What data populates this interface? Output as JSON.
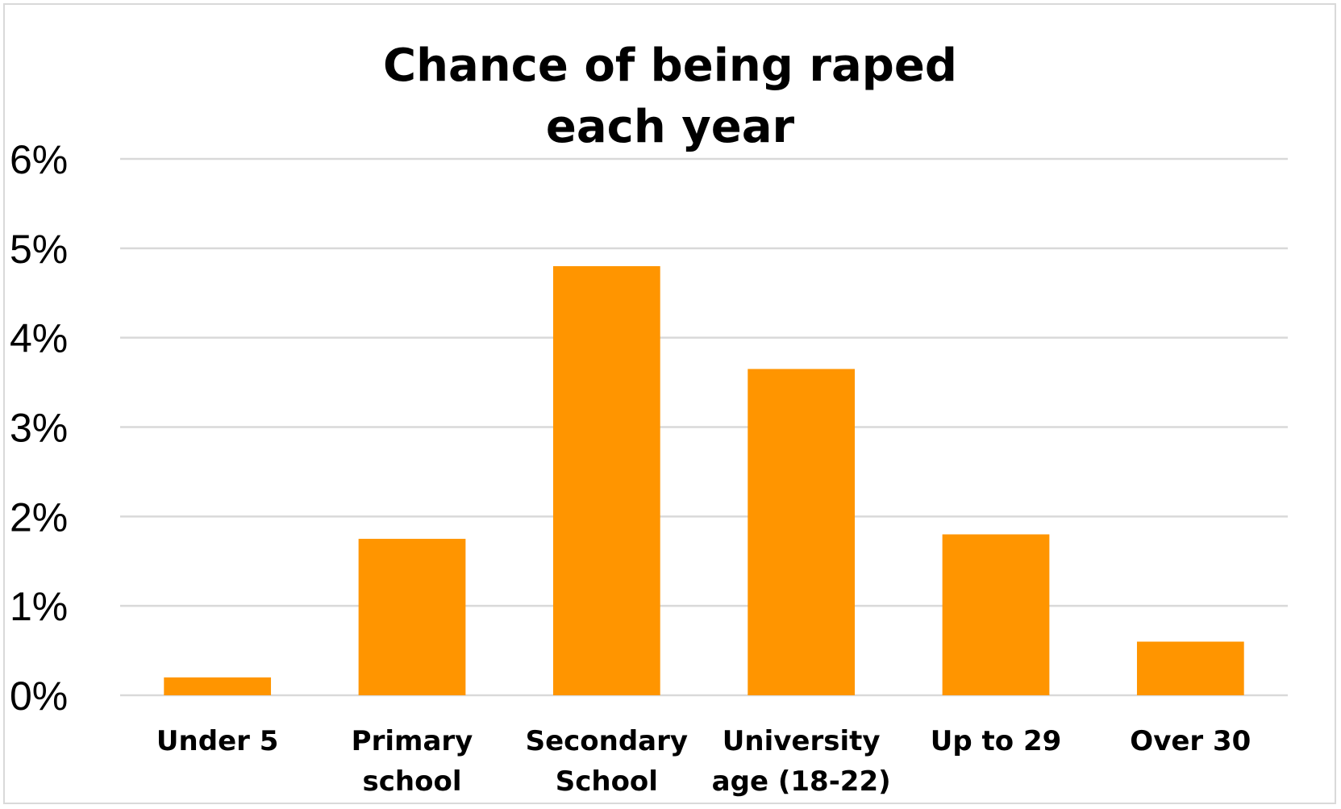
{
  "chart_data": {
    "type": "bar",
    "title_lines": [
      "Chance of being raped",
      "each year"
    ],
    "categories": [
      [
        "Under 5"
      ],
      [
        "Primary",
        "school"
      ],
      [
        "Secondary",
        "School"
      ],
      [
        "University",
        "age (18-22)"
      ],
      [
        "Up to 29"
      ],
      [
        "Over 30"
      ]
    ],
    "values": [
      0.2,
      1.75,
      4.8,
      3.65,
      1.8,
      0.6
    ],
    "y_tick_labels": [
      "0%",
      "1%",
      "2%",
      "3%",
      "4%",
      "5%",
      "6%"
    ],
    "ylim": [
      0,
      6
    ],
    "grid": true,
    "bar_color": "#ff9500",
    "grid_color": "#d9d9d9"
  }
}
